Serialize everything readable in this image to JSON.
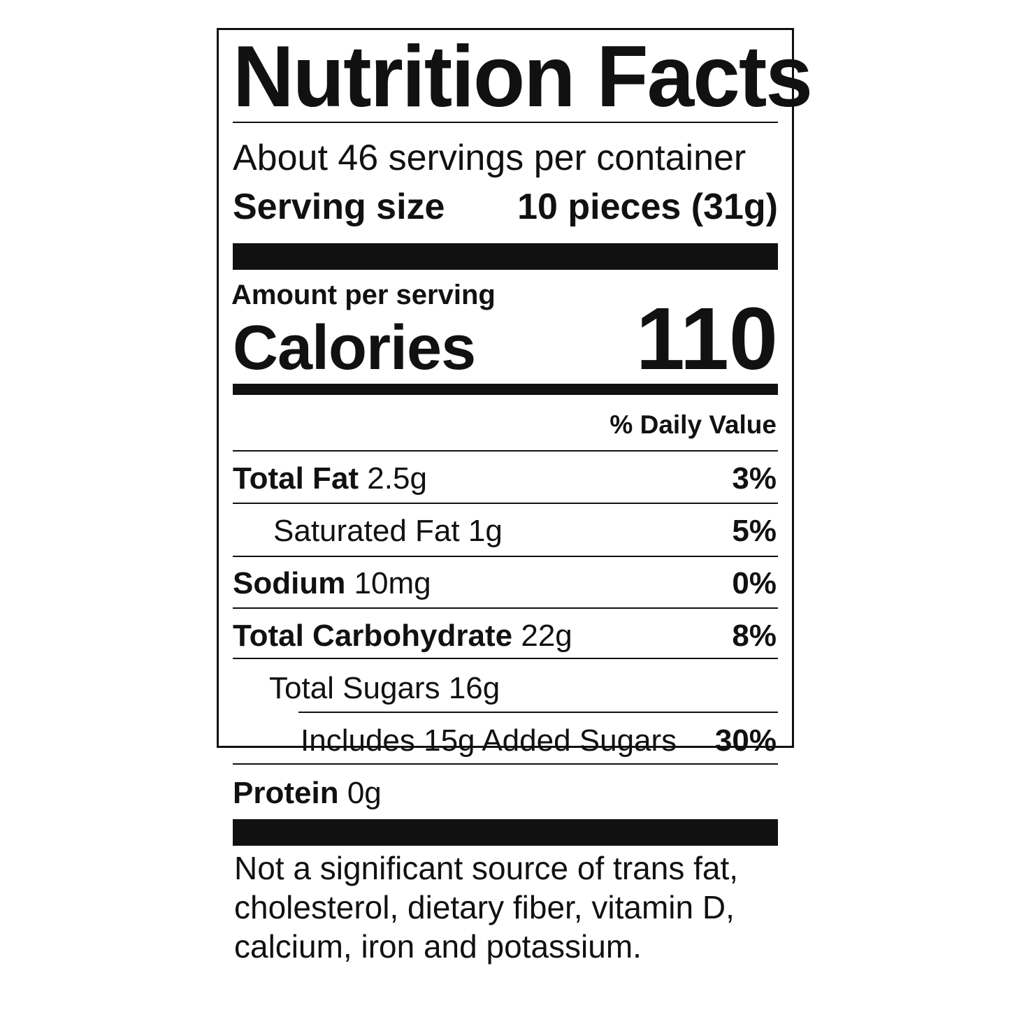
{
  "title": "Nutrition Facts",
  "servings_per_container": "About 46 servings per container",
  "serving_size_label": "Serving size",
  "serving_size_value": "10 pieces (31g)",
  "amount_per_serving": "Amount per serving",
  "calories_label": "Calories",
  "calories_value": "110",
  "daily_value_header": "% Daily Value",
  "nutrients": [
    {
      "name": "Total Fat",
      "amount": "2.5g",
      "dv": "3%"
    },
    {
      "name": "Saturated Fat",
      "amount": "1g",
      "dv": "5%"
    },
    {
      "name": "Sodium",
      "amount": "10mg",
      "dv": "0%"
    },
    {
      "name": "Total Carbohydrate",
      "amount": "22g",
      "dv": "8%"
    },
    {
      "name": "Total Sugars",
      "amount": "16g",
      "dv": ""
    },
    {
      "name": "Includes 15g Added Sugars",
      "amount": "",
      "dv": "30%"
    },
    {
      "name": "Protein",
      "amount": "0g",
      "dv": ""
    }
  ],
  "footnote": "Not a significant source of trans fat, cholesterol, dietary fiber, vitamin D, calcium, iron and potassium."
}
